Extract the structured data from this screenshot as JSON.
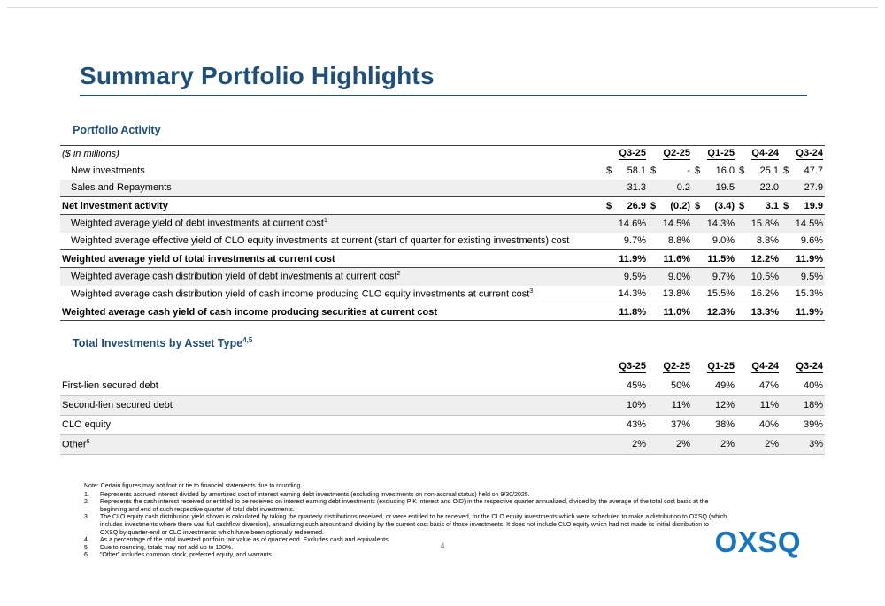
{
  "slide": {
    "title": "Summary Portfolio Highlights",
    "page_number": "4",
    "logo": "OXSQ"
  },
  "portfolio_activity": {
    "heading": "Portfolio Activity",
    "unit_label": "($ in millions)",
    "columns": [
      "Q3-25",
      "Q2-25",
      "Q1-25",
      "Q4-24",
      "Q3-24"
    ],
    "rows": [
      {
        "label": "New investments",
        "values": [
          "$ 58.1",
          "$ -",
          "$ 16.0",
          "$ 25.1",
          "$ 47.7"
        ],
        "indent": true,
        "shaded": false,
        "total": false
      },
      {
        "label": "Sales and Repayments",
        "values": [
          "31.3",
          "0.2",
          "19.5",
          "22.0",
          "27.9"
        ],
        "indent": true,
        "shaded": true,
        "total": false
      },
      {
        "label": "Net investment activity",
        "values": [
          "$ 26.9",
          "$ (0.2)",
          "$ (3.4)",
          "$ 3.1",
          "$ 19.9"
        ],
        "indent": false,
        "shaded": false,
        "total": true
      },
      {
        "label": "Weighted average yield of debt investments at current cost",
        "sup": "1",
        "values": [
          "14.6%",
          "14.5%",
          "14.3%",
          "15.8%",
          "14.5%"
        ],
        "indent": true,
        "shaded": true,
        "total": false
      },
      {
        "label": "Weighted average effective yield of CLO equity investments at current (start of quarter for existing investments) cost",
        "values": [
          "9.7%",
          "8.8%",
          "9.0%",
          "8.8%",
          "9.6%"
        ],
        "indent": true,
        "shaded": false,
        "total": false
      },
      {
        "label": "Weighted average yield of total investments at current cost",
        "values": [
          "11.9%",
          "11.6%",
          "11.5%",
          "12.2%",
          "11.9%"
        ],
        "indent": false,
        "shaded": false,
        "total": true
      },
      {
        "label": "Weighted average cash distribution yield of debt investments at current cost",
        "sup": "2",
        "values": [
          "9.5%",
          "9.0%",
          "9.7%",
          "10.5%",
          "9.5%"
        ],
        "indent": true,
        "shaded": true,
        "total": false
      },
      {
        "label": "Weighted average cash distribution yield of cash income producing CLO equity investments at current cost",
        "sup": "3",
        "values": [
          "14.3%",
          "13.8%",
          "15.5%",
          "16.2%",
          "15.3%"
        ],
        "indent": true,
        "shaded": false,
        "total": false
      },
      {
        "label": "Weighted average cash yield of cash income producing securities at current cost",
        "values": [
          "11.8%",
          "11.0%",
          "12.3%",
          "13.3%",
          "11.9%"
        ],
        "indent": false,
        "shaded": false,
        "total": true
      }
    ]
  },
  "asset_type": {
    "heading": "Total Investments by Asset Type",
    "heading_sup": "4,5",
    "columns": [
      "Q3-25",
      "Q2-25",
      "Q1-25",
      "Q4-24",
      "Q3-24"
    ],
    "rows": [
      {
        "label": "First-lien secured debt",
        "values": [
          "45%",
          "50%",
          "49%",
          "47%",
          "40%"
        ],
        "indent": false,
        "shaded": false,
        "total": false
      },
      {
        "label": "Second-lien secured debt",
        "values": [
          "10%",
          "11%",
          "12%",
          "11%",
          "18%"
        ],
        "indent": false,
        "shaded": true,
        "total": false
      },
      {
        "label": "CLO equity",
        "values": [
          "43%",
          "37%",
          "38%",
          "40%",
          "39%"
        ],
        "indent": false,
        "shaded": false,
        "total": false
      },
      {
        "label": "Other",
        "sup": "6",
        "values": [
          "2%",
          "2%",
          "2%",
          "2%",
          "3%"
        ],
        "indent": false,
        "shaded": true,
        "total": false
      }
    ]
  },
  "footnotes": {
    "note": "Note: Certain figures may not foot or tie to financial statements due to rounding.",
    "items": [
      {
        "num": "1.",
        "text": "Represents accrued interest divided by amortized cost of interest earning debt investments (excluding investments on non-accrual status) held on 9/30/2025."
      },
      {
        "num": "2.",
        "text": "Represents the cash interest received or entitled to be received on interest earning debt investments (excluding PIK interest and OID) in the respective quarter annualized, divided by the average of the total cost basis at the beginning and end of such respective quarter of total debt investments."
      },
      {
        "num": "3.",
        "text": "The CLO equity cash distribution yield shown is calculated by taking the quarterly distributions received, or were entitled to be received, for the CLO equity investments which were scheduled to make a distribution to OXSQ (which includes investments where there was full cashflow diversion), annualizing such amount and dividing by the current cost basis of those investments. It does not include CLO equity which had not made its initial distribution to OXSQ by quarter-end or CLO investments which have been optionally redeemed."
      },
      {
        "num": "4.",
        "text": "As a percentage of the total invested portfolio fair value as of quarter end.  Excludes cash and equivalents."
      },
      {
        "num": "5.",
        "text": "Due to rounding, totals may not add up to 100%."
      },
      {
        "num": "6.",
        "text": "\"Other\" includes common stock, preferred equity, and warrants."
      }
    ]
  }
}
